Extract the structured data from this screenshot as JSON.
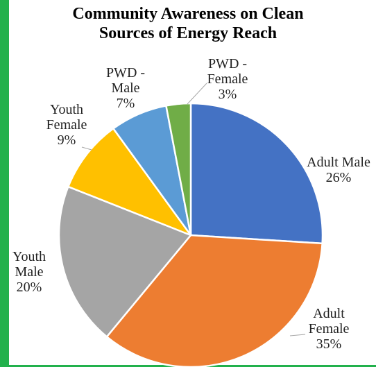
{
  "chart_data": {
    "type": "pie",
    "title_lines": [
      "Community Awareness on Clean",
      "Sources of Energy Reach"
    ],
    "slices": [
      {
        "category": [
          "Adult Male"
        ],
        "value": 26,
        "value_label": "26%",
        "color": "#4472c4"
      },
      {
        "category": [
          "Adult",
          "Female"
        ],
        "value": 35,
        "value_label": "35%",
        "color": "#ed7d31"
      },
      {
        "category": [
          "Youth",
          "Male"
        ],
        "value": 20,
        "value_label": "20%",
        "color": "#a5a5a5"
      },
      {
        "category": [
          "Youth",
          "Female"
        ],
        "value": 9,
        "value_label": "9%",
        "color": "#ffc000"
      },
      {
        "category": [
          "PWD -",
          "Male"
        ],
        "value": 7,
        "value_label": "7%",
        "color": "#5b9bd5"
      },
      {
        "category": [
          "PWD -",
          "Female"
        ],
        "value": 3,
        "value_label": "3%",
        "color": "#70ad47"
      }
    ],
    "start_angle": "12 o'clock",
    "direction": "clockwise",
    "legend": "none",
    "data_labels": "outside with leader lines"
  },
  "colors": {
    "frame_accent": "#22b14c",
    "slice_border": "#ffffff"
  }
}
